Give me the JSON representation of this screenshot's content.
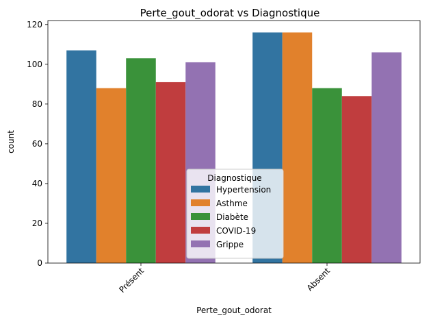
{
  "chart_data": {
    "type": "bar",
    "title": "Perte_gout_odorat vs Diagnostique",
    "xlabel": "Perte_gout_odorat",
    "ylabel": "count",
    "categories": [
      "Présent",
      "Absent"
    ],
    "series": [
      {
        "name": "Hypertension",
        "values": [
          107,
          116
        ],
        "color": "#3274a1"
      },
      {
        "name": "Asthme",
        "values": [
          88,
          116
        ],
        "color": "#e1812c"
      },
      {
        "name": "Diabète",
        "values": [
          103,
          88
        ],
        "color": "#3a923a"
      },
      {
        "name": "COVID-19",
        "values": [
          91,
          84
        ],
        "color": "#c03d3e"
      },
      {
        "name": "Grippe",
        "values": [
          101,
          106
        ],
        "color": "#9372b2"
      }
    ],
    "ylim": [
      0,
      122
    ],
    "yticks": [
      0,
      20,
      40,
      60,
      80,
      100,
      120
    ],
    "legend": {
      "title": "Diagnostique",
      "placement": "bottom-center"
    },
    "grid": false
  }
}
